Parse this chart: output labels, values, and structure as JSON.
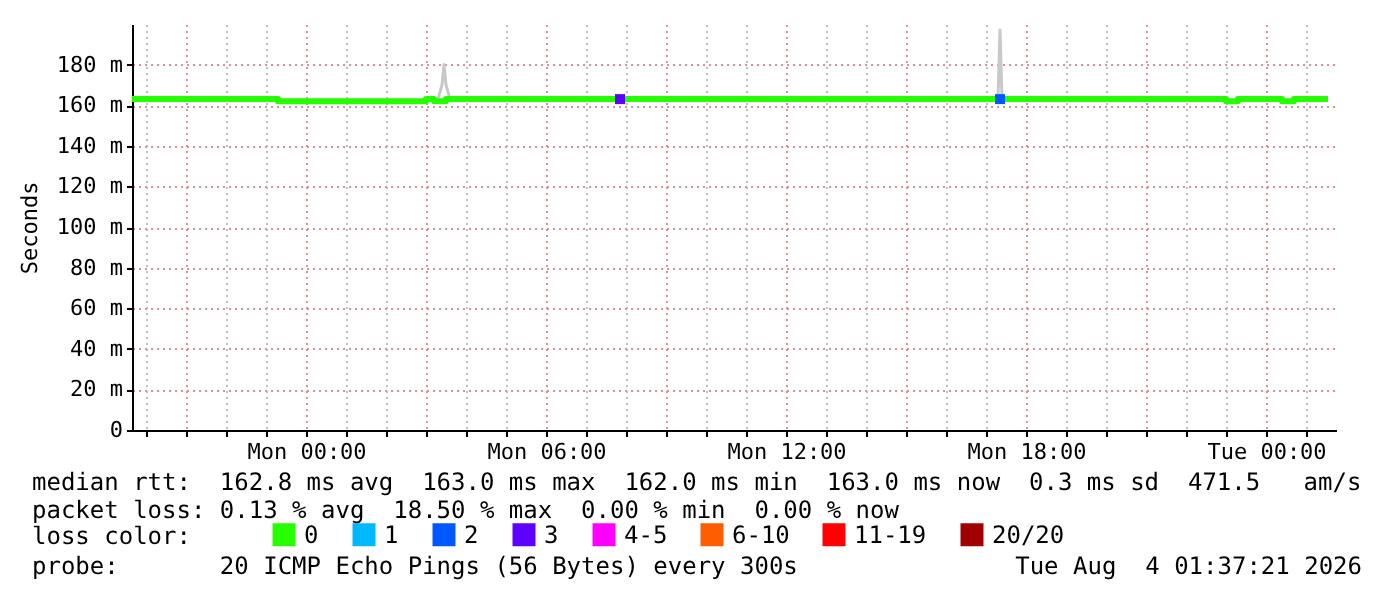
{
  "chart_data": {
    "type": "line",
    "ylabel": "Seconds",
    "legend_title": "loss color:",
    "legend": "bottom",
    "grid": true,
    "xlim": [
      "2026-08-02T19:39",
      "2026-08-04T01:45"
    ],
    "xticks": [
      {
        "value": "2026-08-02T20:00",
        "label": null
      },
      {
        "value": "2026-08-02T21:00",
        "label": null
      },
      {
        "value": "2026-08-02T22:00",
        "label": null
      },
      {
        "value": "2026-08-02T23:00",
        "label": null
      },
      {
        "value": "2026-08-03T00:00",
        "label": "Mon 00:00"
      },
      {
        "value": "2026-08-03T01:00",
        "label": null
      },
      {
        "value": "2026-08-03T02:00",
        "label": null
      },
      {
        "value": "2026-08-03T03:00",
        "label": null
      },
      {
        "value": "2026-08-03T04:00",
        "label": null
      },
      {
        "value": "2026-08-03T05:00",
        "label": null
      },
      {
        "value": "2026-08-03T06:00",
        "label": "Mon 06:00"
      },
      {
        "value": "2026-08-03T07:00",
        "label": null
      },
      {
        "value": "2026-08-03T08:00",
        "label": null
      },
      {
        "value": "2026-08-03T09:00",
        "label": null
      },
      {
        "value": "2026-08-03T10:00",
        "label": null
      },
      {
        "value": "2026-08-03T11:00",
        "label": null
      },
      {
        "value": "2026-08-03T12:00",
        "label": "Mon 12:00"
      },
      {
        "value": "2026-08-03T13:00",
        "label": null
      },
      {
        "value": "2026-08-03T14:00",
        "label": null
      },
      {
        "value": "2026-08-03T15:00",
        "label": null
      },
      {
        "value": "2026-08-03T16:00",
        "label": null
      },
      {
        "value": "2026-08-03T17:00",
        "label": null
      },
      {
        "value": "2026-08-03T18:00",
        "label": "Mon 18:00"
      },
      {
        "value": "2026-08-03T19:00",
        "label": null
      },
      {
        "value": "2026-08-03T20:00",
        "label": null
      },
      {
        "value": "2026-08-03T21:00",
        "label": null
      },
      {
        "value": "2026-08-03T22:00",
        "label": null
      },
      {
        "value": "2026-08-03T23:00",
        "label": null
      },
      {
        "value": "2026-08-04T00:00",
        "label": "Tue 00:00"
      },
      {
        "value": "2026-08-04T01:00",
        "label": null
      }
    ],
    "ylim": [
      0,
      200
    ],
    "yticks": [
      0,
      {
        "value": 20,
        "label": "20 m"
      },
      {
        "value": 40,
        "label": "40 m"
      },
      {
        "value": 60,
        "label": "60 m"
      },
      {
        "value": 80,
        "label": "80 m"
      },
      {
        "value": 100,
        "label": "100 m"
      },
      {
        "value": 120,
        "label": "120 m"
      },
      {
        "value": 140,
        "label": "140 m"
      },
      {
        "value": 160,
        "label": "160 m"
      },
      {
        "value": 180,
        "label": "180 m"
      }
    ],
    "series": [
      {
        "color": "#c8c8c8",
        "x": [
          "2026-08-03T03:18",
          "2026-08-03T03:24",
          "2026-08-03T03:27",
          "2026-08-03T03:30",
          "2026-08-03T03:36"
        ],
        "values": [
          163,
          170,
          180,
          170,
          163
        ]
      },
      {
        "color": "#c8c8c8",
        "x": [
          "2026-08-03T17:18",
          "2026-08-03T17:21",
          "2026-08-03T17:24"
        ],
        "values": [
          163,
          197,
          163
        ]
      },
      {
        "name": "0",
        "color": "#26ff00",
        "marker": "none",
        "x": [
          "2026-08-02T19:39",
          "2026-08-02T23:18",
          "2026-08-02T23:18",
          "2026-08-03T03:00",
          "2026-08-03T03:00",
          "2026-08-03T03:12",
          "2026-08-03T03:12",
          "2026-08-03T03:30",
          "2026-08-03T03:30",
          "2026-08-03T23:00",
          "2026-08-03T23:00",
          "2026-08-03T23:18",
          "2026-08-03T23:18",
          "2026-08-04T00:24",
          "2026-08-04T00:24",
          "2026-08-04T00:42",
          "2026-08-04T00:42",
          "2026-08-04T01:33"
        ],
        "values": [
          163,
          163,
          162,
          162,
          163,
          163,
          162,
          162,
          163,
          163,
          162,
          162,
          163,
          163,
          162,
          162,
          163,
          163
        ]
      },
      {
        "name": "1",
        "type": "scatter",
        "color": "#00b8ff",
        "marker": "square"
      },
      {
        "name": "2",
        "type": "scatter",
        "color": "#0059ff",
        "marker": "square",
        "x": [
          "2026-08-03T17:21"
        ],
        "values": [
          163
        ]
      },
      {
        "name": "3",
        "type": "scatter",
        "color": "#5e00ff",
        "marker": "square",
        "x": [
          "2026-08-03T07:51"
        ],
        "values": [
          163
        ]
      },
      {
        "name": "4-5",
        "type": "scatter",
        "color": "#ff00ff",
        "marker": "square"
      },
      {
        "name": "6-10",
        "type": "scatter",
        "color": "#ff5e00",
        "marker": "square"
      },
      {
        "name": "11-19",
        "type": "scatter",
        "color": "#ff0000",
        "marker": "square"
      },
      {
        "name": "20/20",
        "type": "scatter",
        "color": "#a10000",
        "marker": "square"
      }
    ],
    "annotations": [
      "median rtt:  162.8 ms avg  163.0 ms max  162.0 ms min  163.0 ms now  0.3 ms sd  471.5   am/s",
      "packet loss: 0.13 % avg  18.50 % max  0.00 % min  0.00 % now",
      "probe:       20 ICMP Echo Pings (56 Bytes) every 300s",
      "Tue Aug  4 01:37:21 2026"
    ]
  }
}
